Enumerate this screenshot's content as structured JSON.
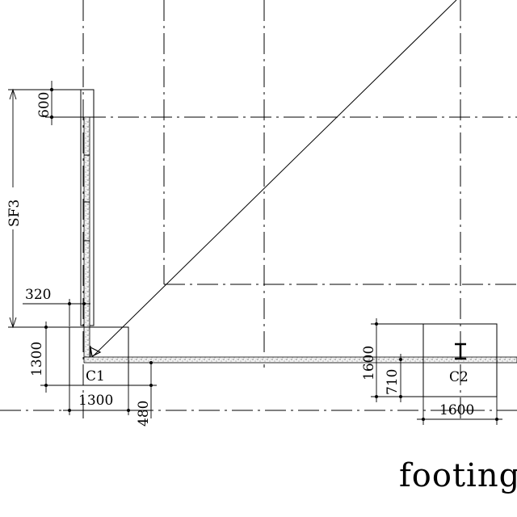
{
  "drawing": {
    "title": "footing",
    "footings": {
      "c1_label": "C1",
      "c2_label": "C2"
    },
    "dimensions": {
      "top_600": "600",
      "sf3": "SF3",
      "d320": "320",
      "d1300_vertical": "1300",
      "d1300_horizontal": "1300",
      "d480": "480",
      "d1600_vertical": "1600",
      "d710": "710",
      "d1600_horizontal": "1600"
    }
  }
}
